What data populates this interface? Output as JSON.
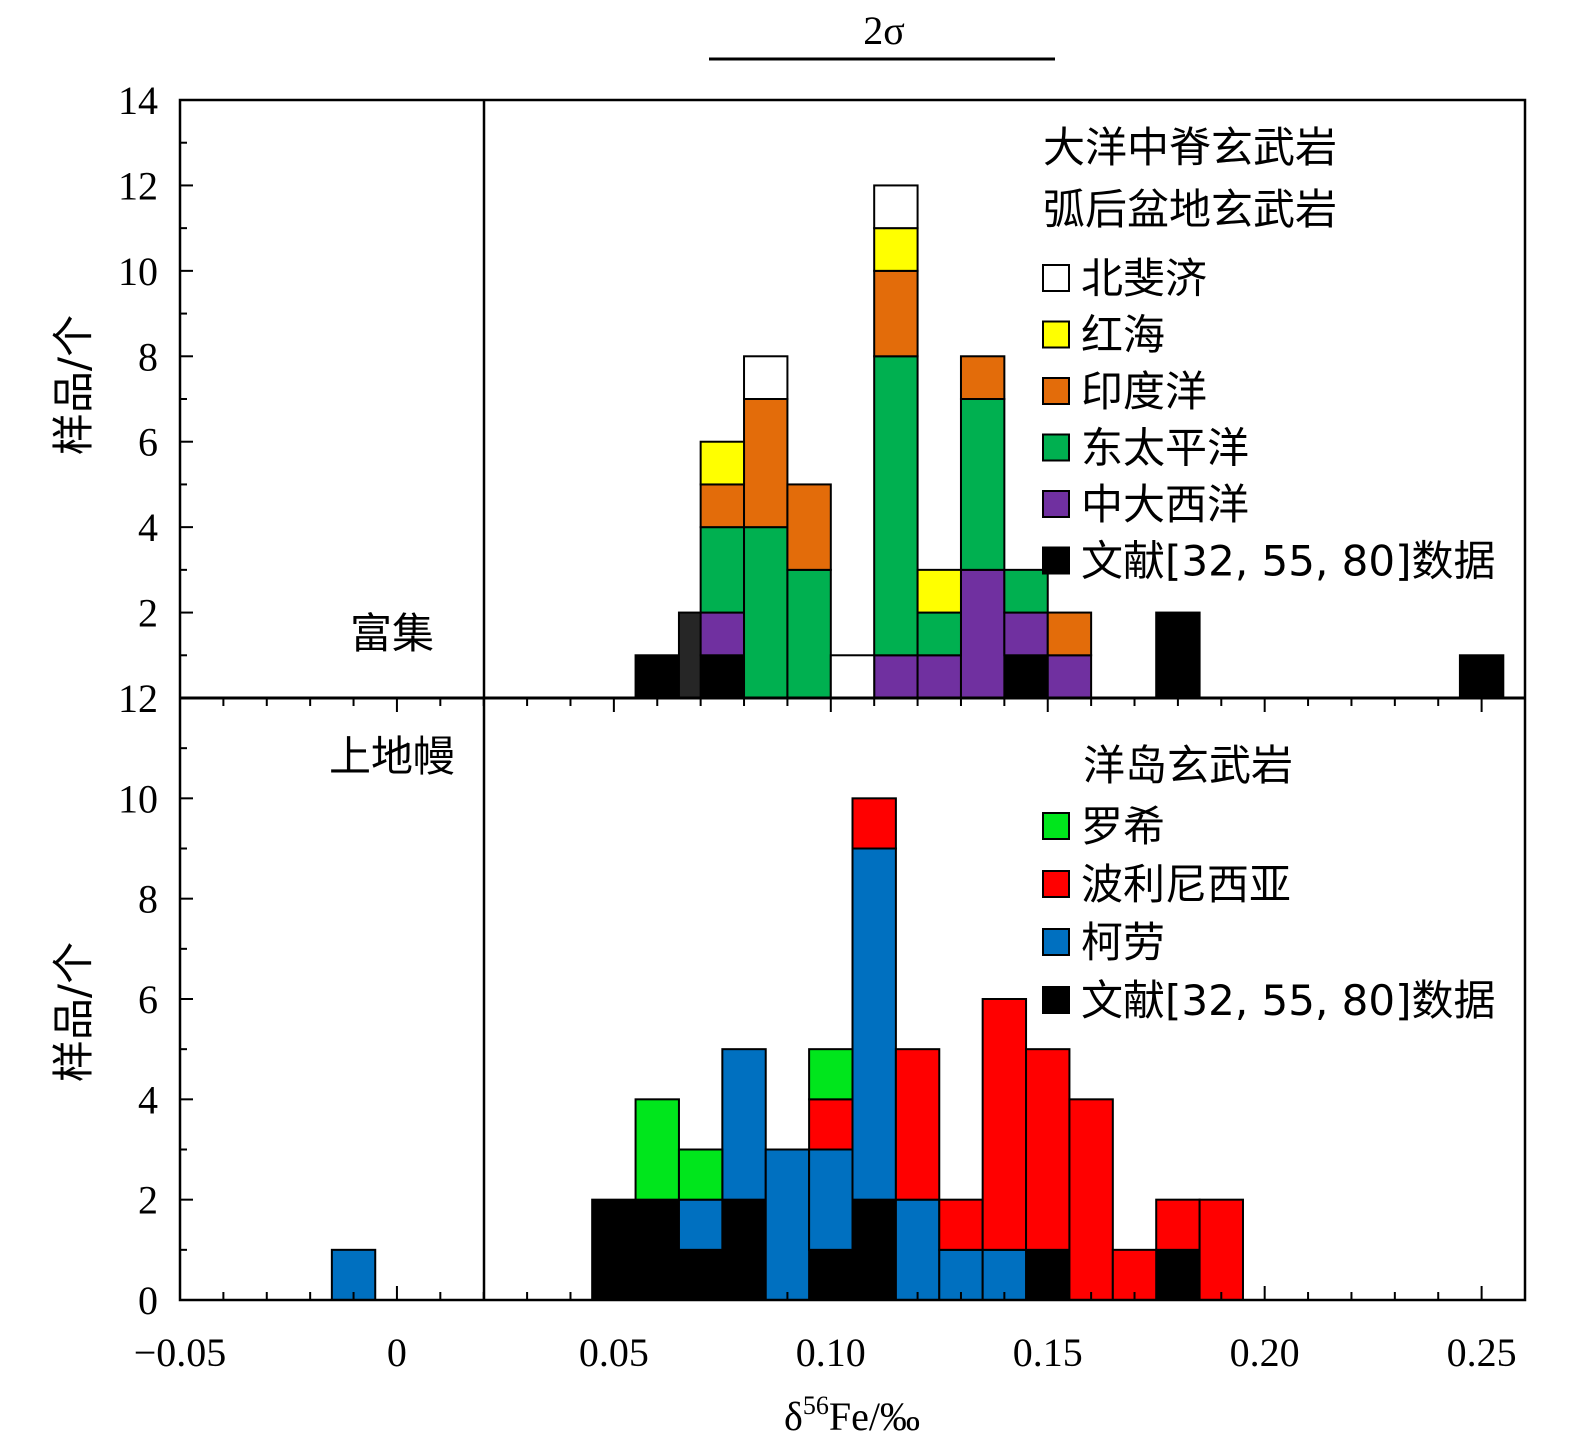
{
  "colors": {
    "north_fiji": "#ffffff",
    "red_sea": "#ffff00",
    "indian_ocean": "#e36c0a",
    "east_pacific": "#00b050",
    "mid_atlantic": "#7030a0",
    "literature": "#000000",
    "literature_dark": "#262626",
    "samoa": "#00e61c",
    "polynesia": "#ff0000",
    "koolau": "#0070c0"
  },
  "chart_data": [
    {
      "type": "bar",
      "stacked": true,
      "panel": "top",
      "legend_titles": [
        "大洋中脊玄武岩",
        "弧后盆地玄武岩"
      ],
      "legend_placement": "top-right",
      "ylabel": "样品/个",
      "ylim": [
        0,
        14
      ],
      "y_ticks": [
        "14",
        "12",
        "10",
        "8",
        "6",
        "4",
        "2"
      ],
      "bin_width": 0.01,
      "series": [
        {
          "name": "北斐济",
          "color_key": "north_fiji",
          "bars": [
            [
              0.085,
              1
            ],
            [
              0.105,
              1
            ],
            [
              0.115,
              1
            ]
          ]
        },
        {
          "name": "红海",
          "color_key": "red_sea",
          "bars": [
            [
              0.075,
              1
            ],
            [
              0.115,
              1
            ],
            [
              0.125,
              1
            ]
          ]
        },
        {
          "name": "印度洋",
          "color_key": "indian_ocean",
          "bars": [
            [
              0.075,
              1
            ],
            [
              0.085,
              3
            ],
            [
              0.095,
              2
            ],
            [
              0.115,
              2
            ],
            [
              0.135,
              1
            ],
            [
              0.155,
              1
            ]
          ]
        },
        {
          "name": "东太平洋",
          "color_key": "east_pacific",
          "bars": [
            [
              0.075,
              2
            ],
            [
              0.085,
              4
            ],
            [
              0.095,
              3
            ],
            [
              0.115,
              7
            ],
            [
              0.125,
              1
            ],
            [
              0.135,
              4
            ],
            [
              0.145,
              1
            ]
          ]
        },
        {
          "name": "中大西洋",
          "color_key": "mid_atlantic",
          "bars": [
            [
              0.075,
              1
            ],
            [
              0.115,
              1
            ],
            [
              0.125,
              1
            ],
            [
              0.135,
              3
            ],
            [
              0.145,
              1
            ],
            [
              0.155,
              1
            ]
          ]
        },
        {
          "name": "文献[32, 55, 80]数据",
          "color_key": "literature",
          "bars": [
            [
              0.06,
              1
            ],
            [
              0.07,
              2
            ],
            [
              0.075,
              1
            ],
            [
              0.145,
              1
            ],
            [
              0.18,
              2
            ],
            [
              0.25,
              1
            ]
          ]
        }
      ]
    },
    {
      "type": "bar",
      "stacked": true,
      "panel": "bottom",
      "legend_titles": [
        "洋岛玄武岩"
      ],
      "legend_placement": "top-right",
      "xlabel": "δ56Fe/‰",
      "ylabel": "样品/个",
      "xlim": [
        -0.05,
        0.26
      ],
      "ylim": [
        0,
        12
      ],
      "y_ticks": [
        "12",
        "10",
        "8",
        "6",
        "4",
        "2",
        "0"
      ],
      "x_ticks": [
        "−0.05",
        "0",
        "0.05",
        "0.10",
        "0.15",
        "0.20",
        "0.25"
      ],
      "bin_width": 0.01,
      "series": [
        {
          "name": "文献[32, 55, 80]数据",
          "color_key": "literature",
          "bars": [
            [
              0.05,
              2
            ],
            [
              0.06,
              2
            ],
            [
              0.07,
              1
            ],
            [
              0.08,
              2
            ],
            [
              0.1,
              1
            ],
            [
              0.11,
              2
            ],
            [
              0.15,
              1
            ],
            [
              0.18,
              1
            ]
          ]
        },
        {
          "name": "柯劳",
          "color_key": "koolau",
          "bars": [
            [
              -0.01,
              1
            ],
            [
              0.07,
              1
            ],
            [
              0.08,
              3
            ],
            [
              0.09,
              3
            ],
            [
              0.1,
              2
            ],
            [
              0.11,
              7
            ],
            [
              0.12,
              2
            ],
            [
              0.13,
              1
            ],
            [
              0.14,
              1
            ]
          ]
        },
        {
          "name": "波利尼西亚",
          "color_key": "polynesia",
          "bars": [
            [
              0.1,
              1
            ],
            [
              0.11,
              1
            ],
            [
              0.12,
              3
            ],
            [
              0.13,
              1
            ],
            [
              0.14,
              5
            ],
            [
              0.15,
              4
            ],
            [
              0.16,
              4
            ],
            [
              0.17,
              1
            ],
            [
              0.18,
              1
            ],
            [
              0.19,
              2
            ]
          ]
        },
        {
          "name": "罗希",
          "color_key": "samoa",
          "bars": [
            [
              0.06,
              2
            ],
            [
              0.07,
              1
            ],
            [
              0.1,
              1
            ]
          ]
        }
      ]
    }
  ],
  "annotations": {
    "enriched": "富集",
    "upper_mantle": "上地幔",
    "two_sigma": "2σ"
  }
}
